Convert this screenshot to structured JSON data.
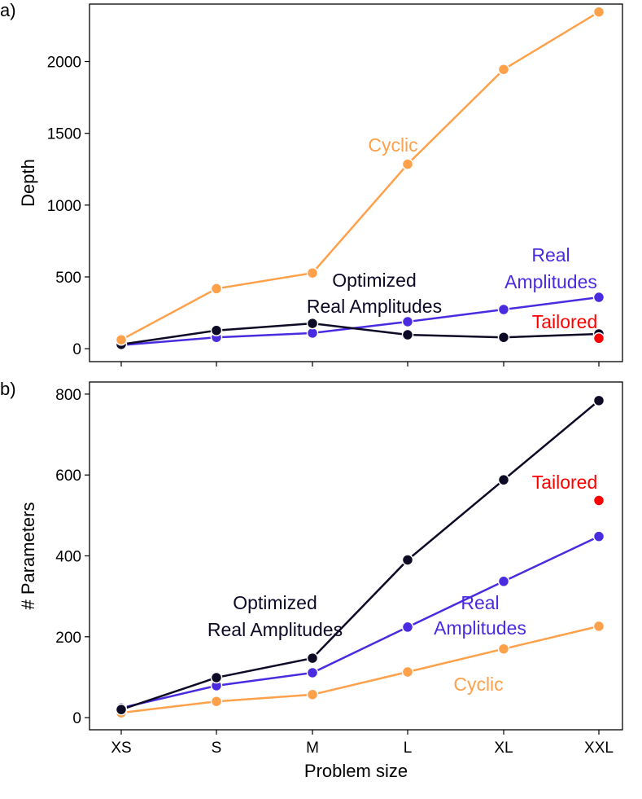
{
  "colors": {
    "cyclic": "#FFA04A",
    "real": "#4B2BE0",
    "optimized": "#0D0A26",
    "tailored": "#FF0000"
  },
  "chart_data": [
    {
      "panel_label": "a)",
      "type": "line",
      "xlabel": "",
      "ylabel": "Depth",
      "categories": [
        "XS",
        "S",
        "M",
        "L",
        "XL",
        "XXL"
      ],
      "ylim": [
        -90,
        2400
      ],
      "yticks": [
        0,
        500,
        1000,
        1500,
        2000
      ],
      "series": [
        {
          "key": "cyclic",
          "name": "Cyclic",
          "values": [
            62,
            418,
            527,
            1285,
            1945,
            2345
          ]
        },
        {
          "key": "real",
          "name": "Real Amplitudes",
          "values": [
            25,
            79,
            109,
            188,
            273,
            358
          ]
        },
        {
          "key": "optimized",
          "name": "Optimized Real Amplitudes",
          "values": [
            30,
            127,
            176,
            97,
            79,
            103
          ]
        },
        {
          "key": "tailored",
          "name": "Tailored",
          "values": [
            null,
            null,
            null,
            null,
            null,
            73
          ]
        }
      ],
      "annotations": [
        {
          "key": "cyclic",
          "lines": [
            "Cyclic"
          ]
        },
        {
          "key": "optimized",
          "lines": [
            "Optimized",
            "Real Amplitudes"
          ]
        },
        {
          "key": "real",
          "lines": [
            "Real",
            "Amplitudes"
          ]
        },
        {
          "key": "tailored",
          "lines": [
            "Tailored"
          ]
        }
      ]
    },
    {
      "panel_label": "b)",
      "type": "line",
      "xlabel": "Problem size",
      "ylabel": "# Parameters",
      "categories": [
        "XS",
        "S",
        "M",
        "L",
        "XL",
        "XXL"
      ],
      "ylim": [
        -30,
        830
      ],
      "yticks": [
        0,
        200,
        400,
        600,
        800
      ],
      "series": [
        {
          "key": "cyclic",
          "name": "Cyclic",
          "values": [
            12,
            40,
            57,
            113,
            170,
            226
          ]
        },
        {
          "key": "real",
          "name": "Real Amplitudes",
          "values": [
            24,
            79,
            111,
            224,
            337,
            448
          ]
        },
        {
          "key": "optimized",
          "name": "Optimized Real Amplitudes",
          "values": [
            20,
            99,
            147,
            390,
            588,
            784
          ]
        },
        {
          "key": "tailored",
          "name": "Tailored",
          "values": [
            null,
            null,
            null,
            null,
            null,
            537
          ]
        }
      ],
      "annotations": [
        {
          "key": "tailored",
          "lines": [
            "Tailored"
          ]
        },
        {
          "key": "optimized",
          "lines": [
            "Optimized",
            "Real Amplitudes"
          ]
        },
        {
          "key": "real",
          "lines": [
            "Real",
            "Amplitudes"
          ]
        },
        {
          "key": "cyclic",
          "lines": [
            "Cyclic"
          ]
        }
      ]
    }
  ]
}
